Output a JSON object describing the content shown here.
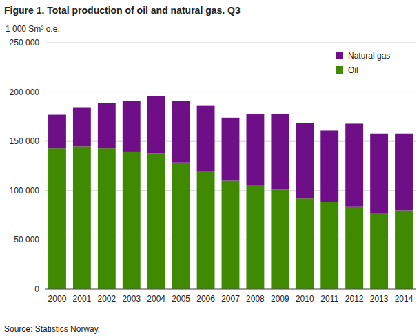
{
  "chart_data": {
    "type": "bar",
    "title": "Figure 1. Total production of oil and natural gas. Q3",
    "y_label": "1 000 Sm³ o.e.",
    "source": "Source: Statistics Norway.",
    "stacked": true,
    "grid": true,
    "legend": "upper right",
    "categories": [
      "2000",
      "2001",
      "2002",
      "2003",
      "2004",
      "2005",
      "2006",
      "2007",
      "2008",
      "2009",
      "2010",
      "2011",
      "2012",
      "2013",
      "2014"
    ],
    "series": [
      {
        "name": "Oil",
        "color": "#3f8a00",
        "values": [
          143000,
          145000,
          143000,
          139000,
          138000,
          128000,
          120000,
          110000,
          106000,
          101000,
          92000,
          88000,
          84000,
          77000,
          80000
        ]
      },
      {
        "name": "Natural gas",
        "color": "#6e0f87",
        "values": [
          34000,
          39000,
          46000,
          52000,
          58000,
          63000,
          66000,
          64000,
          72000,
          77000,
          77000,
          73000,
          84000,
          81000,
          78000
        ]
      }
    ],
    "ylim": [
      0,
      250000
    ],
    "yticks": [
      0,
      {
        "value": 50000,
        "label": "50 000"
      },
      {
        "value": 100000,
        "label": "100 000"
      },
      {
        "value": 150000,
        "label": "150 000"
      },
      {
        "value": 200000,
        "label": "200 000"
      },
      {
        "value": 250000,
        "label": "250 000"
      }
    ]
  }
}
